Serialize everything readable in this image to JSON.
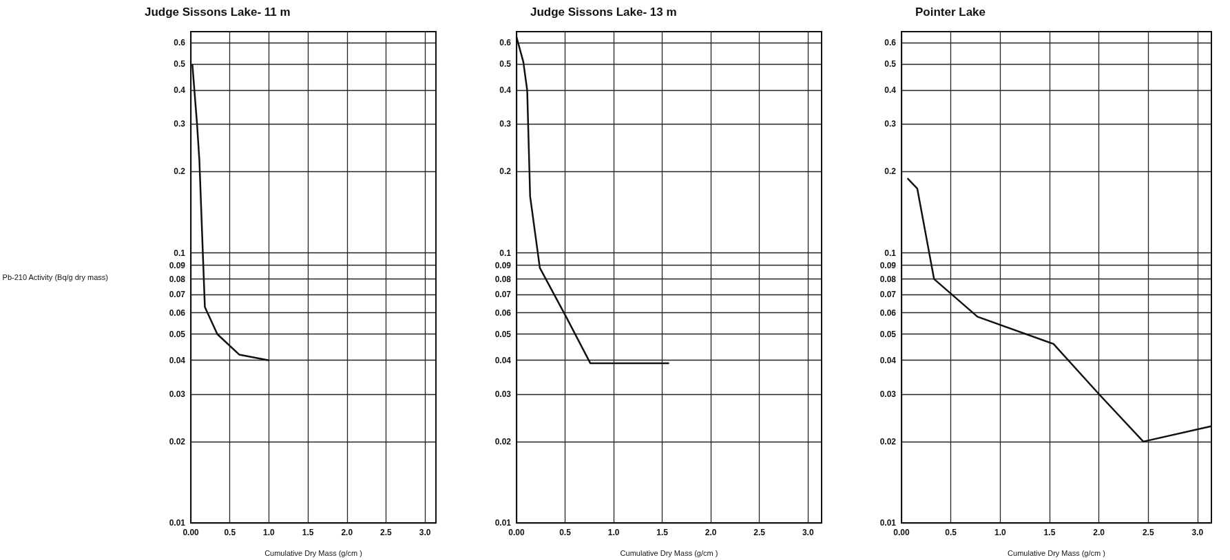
{
  "chart_data": [
    {
      "type": "line",
      "title": "Judge Sissons Lake- 11 m",
      "xlabel": "Cumulative Dry Mass (g/cm )",
      "ylabel": "Pb-210 Activity (Bq/g dry mass)",
      "log": "y",
      "grid": true,
      "marker": "none",
      "line_style": "solid",
      "xlim": [
        0,
        3.14
      ],
      "ylim": [
        0.01,
        0.66
      ],
      "xticks": [
        {
          "value": 0,
          "label": "0.00"
        },
        0.5,
        {
          "value": 1,
          "label": "1.0"
        },
        1.5,
        {
          "value": 2,
          "label": "2.0"
        },
        2.5,
        {
          "value": 3,
          "label": "3.0"
        }
      ],
      "yticks": [
        0.01,
        0.02,
        0.03,
        0.04,
        0.05,
        0.06,
        0.07,
        0.08,
        0.09,
        0.1,
        0.2,
        0.3,
        0.4,
        0.5,
        0.6
      ],
      "series": [
        {
          "color": "#111111",
          "x": [
            0.02,
            0.08,
            0.11,
            0.18,
            0.34,
            0.62,
            1.0
          ],
          "values": [
            0.5,
            0.3,
            0.22,
            0.063,
            0.05,
            0.042,
            0.04
          ]
        }
      ]
    },
    {
      "type": "line",
      "title": "Judge Sissons Lake- 13 m",
      "xlabel": "Cumulative Dry Mass (g/cm )",
      "log": "y",
      "grid": true,
      "marker": "none",
      "line_style": "solid",
      "xlim": [
        0,
        3.14
      ],
      "ylim": [
        0.01,
        0.66
      ],
      "xticks": [
        {
          "value": 0,
          "label": "0.00"
        },
        0.5,
        {
          "value": 1,
          "label": "1.0"
        },
        1.5,
        {
          "value": 2,
          "label": "2.0"
        },
        2.5,
        {
          "value": 3,
          "label": "3.0"
        }
      ],
      "yticks": [
        0.01,
        0.02,
        0.03,
        0.04,
        0.05,
        0.06,
        0.07,
        0.08,
        0.09,
        0.1,
        0.2,
        0.3,
        0.4,
        0.5,
        0.6
      ],
      "series": [
        {
          "color": "#111111",
          "x": [
            0.0,
            0.07,
            0.11,
            0.14,
            0.24,
            0.51,
            0.76,
            1.57
          ],
          "values": [
            0.63,
            0.51,
            0.4,
            0.162,
            0.088,
            0.058,
            0.039,
            0.039
          ]
        }
      ]
    },
    {
      "type": "line",
      "title": "Pointer Lake",
      "xlabel": "Cumulative Dry Mass (g/cm )",
      "log": "y",
      "grid": true,
      "marker": "none",
      "line_style": "solid",
      "xlim": [
        0,
        3.14
      ],
      "ylim": [
        0.01,
        0.66
      ],
      "xticks": [
        {
          "value": 0,
          "label": "0.00"
        },
        0.5,
        {
          "value": 1,
          "label": "1.0"
        },
        1.5,
        {
          "value": 2,
          "label": "2.0"
        },
        2.5,
        {
          "value": 3,
          "label": "3.0"
        }
      ],
      "yticks": [
        0.01,
        0.02,
        0.03,
        0.04,
        0.05,
        0.06,
        0.07,
        0.08,
        0.09,
        0.1,
        0.2,
        0.3,
        0.4,
        0.5,
        0.6
      ],
      "series": [
        {
          "color": "#111111",
          "x": [
            0.06,
            0.16,
            0.33,
            0.77,
            1.54,
            2.0,
            2.45,
            3.14
          ],
          "values": [
            0.189,
            0.173,
            0.08,
            0.058,
            0.046,
            0.03,
            0.02,
            0.0228
          ]
        }
      ]
    }
  ]
}
